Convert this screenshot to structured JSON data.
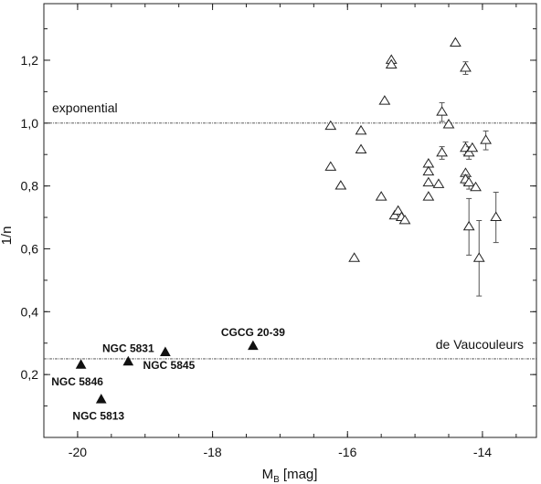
{
  "chart_data": {
    "type": "scatter",
    "title": "",
    "xlabel_main": "M",
    "xlabel_sub": "B",
    "xlabel_rest": " [mag]",
    "ylabel": "1/n",
    "xlim": [
      -20.5,
      -13.2
    ],
    "ylim": [
      0.0,
      1.38
    ],
    "x_ticks": [
      {
        "value": -20,
        "label": "-20"
      },
      {
        "value": -18,
        "label": "-18"
      },
      {
        "value": -16,
        "label": "-16"
      },
      {
        "value": -14,
        "label": "-14"
      }
    ],
    "x_minor_step": 0.5,
    "y_ticks": [
      {
        "value": 0.2,
        "label": "0,2"
      },
      {
        "value": 0.4,
        "label": "0,4"
      },
      {
        "value": 0.6,
        "label": "0,6"
      },
      {
        "value": 0.8,
        "label": "0,8"
      },
      {
        "value": 1.0,
        "label": "1,0"
      },
      {
        "value": 1.2,
        "label": "1,2"
      }
    ],
    "y_minor_step": 0.1,
    "grid": false,
    "reference_lines": [
      {
        "y": 1.0,
        "label": "exponential"
      },
      {
        "y": 0.25,
        "label": "de Vaucouleurs"
      }
    ],
    "series": [
      {
        "marker": "filled-triangle",
        "points": [
          {
            "x": -19.95,
            "y": 0.23,
            "label": "NGC 5846"
          },
          {
            "x": -19.65,
            "y": 0.12,
            "label": "NGC 5813"
          },
          {
            "x": -19.25,
            "y": 0.24,
            "label": "NGC 5831"
          },
          {
            "x": -18.7,
            "y": 0.27,
            "label": "NGC 5845"
          },
          {
            "x": -17.4,
            "y": 0.29,
            "label": "CGCG 20-39"
          }
        ]
      },
      {
        "marker": "open-triangle",
        "points": [
          {
            "x": -16.25,
            "y": 0.99
          },
          {
            "x": -16.25,
            "y": 0.86
          },
          {
            "x": -16.1,
            "y": 0.8
          },
          {
            "x": -15.9,
            "y": 0.57
          },
          {
            "x": -15.8,
            "y": 0.975
          },
          {
            "x": -15.8,
            "y": 0.915
          },
          {
            "x": -15.5,
            "y": 0.765
          },
          {
            "x": -15.45,
            "y": 1.07
          },
          {
            "x": -15.35,
            "y": 1.2
          },
          {
            "x": -15.35,
            "y": 1.185
          },
          {
            "x": -15.3,
            "y": 0.705
          },
          {
            "x": -15.25,
            "y": 0.72
          },
          {
            "x": -15.2,
            "y": 0.7
          },
          {
            "x": -15.15,
            "y": 0.69
          },
          {
            "x": -14.8,
            "y": 0.87
          },
          {
            "x": -14.8,
            "y": 0.845
          },
          {
            "x": -14.8,
            "y": 0.81
          },
          {
            "x": -14.8,
            "y": 0.765
          },
          {
            "x": -14.65,
            "y": 0.805
          },
          {
            "x": -14.6,
            "y": 1.035,
            "err": 0.03
          },
          {
            "x": -14.6,
            "y": 0.905,
            "err": 0.02
          },
          {
            "x": -14.5,
            "y": 0.995
          },
          {
            "x": -14.4,
            "y": 1.255
          },
          {
            "x": -14.25,
            "y": 1.175,
            "err": 0.02
          },
          {
            "x": -14.25,
            "y": 0.92,
            "err": 0.02
          },
          {
            "x": -14.25,
            "y": 0.84
          },
          {
            "x": -14.25,
            "y": 0.82,
            "err": 0.015
          },
          {
            "x": -14.2,
            "y": 0.905,
            "err": 0.02
          },
          {
            "x": -14.2,
            "y": 0.81,
            "err": 0.02
          },
          {
            "x": -14.2,
            "y": 0.67,
            "err": 0.09
          },
          {
            "x": -14.15,
            "y": 0.92
          },
          {
            "x": -14.1,
            "y": 0.795
          },
          {
            "x": -14.05,
            "y": 0.57,
            "err": 0.12
          },
          {
            "x": -13.95,
            "y": 0.945,
            "err": 0.03
          },
          {
            "x": -13.8,
            "y": 0.7,
            "err": 0.08
          }
        ]
      }
    ]
  }
}
